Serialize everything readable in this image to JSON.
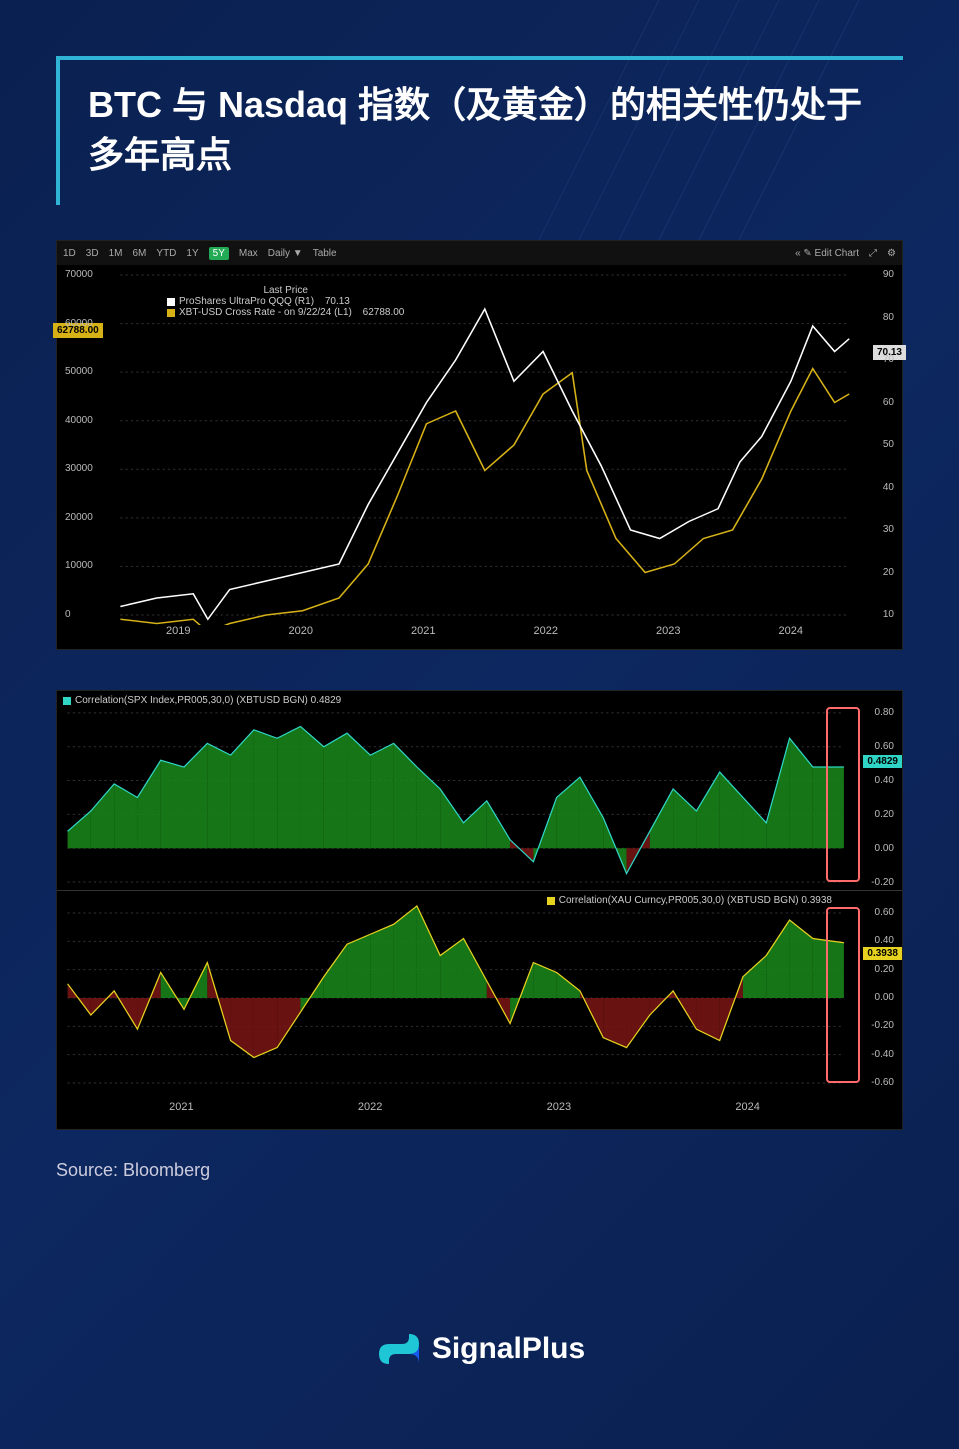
{
  "title": "BTC 与 Nasdaq 指数（及黄金）的相关性仍处于多年高点",
  "source_label": "Source: Bloomberg",
  "brand": "SignalPlus",
  "brand_colors": {
    "teal": "#1fc6d6",
    "blue": "#1a5eff"
  },
  "chart1": {
    "type": "line-dual-axis",
    "toolbar": [
      "1D",
      "3D",
      "1M",
      "6M",
      "YTD",
      "1Y",
      "5Y",
      "Max",
      "Daily ▼",
      "Table"
    ],
    "toolbar_active": "5Y",
    "toolbar_right": [
      "« ✎ Edit Chart",
      "⤢",
      "⚙"
    ],
    "legend_title": "Last Price",
    "series": [
      {
        "name": "ProShares UltraPro QQQ  (R1)",
        "last": "70.13",
        "color": "#ffffff"
      },
      {
        "name": "XBT-USD Cross Rate -  on 9/22/24  (L1)",
        "last": "62788.00",
        "color": "#d6b217"
      }
    ],
    "left_badge": "62788.00",
    "left_badge_color": "#d6b217",
    "right_badge": "70.13",
    "right_badge_color": "#dddddd",
    "background": "#000000",
    "grid_color": "#333333",
    "x_labels": [
      "2019",
      "2020",
      "2021",
      "2022",
      "2023",
      "2024"
    ],
    "left_axis": {
      "min": 0,
      "max": 70000,
      "step": 10000
    },
    "right_axis": {
      "min": 10,
      "max": 90,
      "step": 10
    },
    "line_white": [
      [
        0,
        12
      ],
      [
        5,
        14
      ],
      [
        10,
        15
      ],
      [
        12,
        9
      ],
      [
        15,
        16
      ],
      [
        20,
        18
      ],
      [
        25,
        20
      ],
      [
        30,
        22
      ],
      [
        34,
        36
      ],
      [
        38,
        48
      ],
      [
        42,
        60
      ],
      [
        46,
        70
      ],
      [
        50,
        82
      ],
      [
        54,
        65
      ],
      [
        58,
        72
      ],
      [
        62,
        58
      ],
      [
        66,
        45
      ],
      [
        70,
        30
      ],
      [
        74,
        28
      ],
      [
        78,
        32
      ],
      [
        82,
        35
      ],
      [
        85,
        46
      ],
      [
        88,
        52
      ],
      [
        92,
        65
      ],
      [
        95,
        78
      ],
      [
        98,
        72
      ],
      [
        100,
        75
      ]
    ],
    "line_yellow": [
      [
        0,
        9
      ],
      [
        5,
        8
      ],
      [
        10,
        9
      ],
      [
        12,
        6
      ],
      [
        15,
        8
      ],
      [
        20,
        10
      ],
      [
        25,
        11
      ],
      [
        30,
        14
      ],
      [
        34,
        22
      ],
      [
        38,
        38
      ],
      [
        42,
        55
      ],
      [
        46,
        58
      ],
      [
        50,
        44
      ],
      [
        54,
        50
      ],
      [
        58,
        62
      ],
      [
        62,
        67
      ],
      [
        64,
        44
      ],
      [
        68,
        28
      ],
      [
        72,
        20
      ],
      [
        76,
        22
      ],
      [
        80,
        28
      ],
      [
        84,
        30
      ],
      [
        88,
        42
      ],
      [
        92,
        58
      ],
      [
        95,
        68
      ],
      [
        98,
        60
      ],
      [
        100,
        62
      ]
    ]
  },
  "chart2": {
    "type": "correlation-area",
    "background": "#000000",
    "x_labels": [
      "2021",
      "2022",
      "2023",
      "2024"
    ],
    "highlight": {
      "left_pct": 91,
      "width_pct": 4
    },
    "panel_spx": {
      "legend": "Correlation(SPX Index,PR005,30,0) (XBTUSD BGN) 0.4829",
      "legend_color": "#2fd6c6",
      "badge": "0.4829",
      "badge_color": "#2fd6c6",
      "badge_top_pct": 32,
      "y_axis": {
        "min": -0.2,
        "max": 0.8,
        "step": 0.2
      },
      "positive_fill": "#1a8a1a",
      "negative_fill": "#7a1515",
      "line_color": "#2fd6c6",
      "data": [
        [
          0,
          0.1
        ],
        [
          3,
          0.22
        ],
        [
          6,
          0.38
        ],
        [
          9,
          0.3
        ],
        [
          12,
          0.52
        ],
        [
          15,
          0.48
        ],
        [
          18,
          0.62
        ],
        [
          21,
          0.55
        ],
        [
          24,
          0.7
        ],
        [
          27,
          0.65
        ],
        [
          30,
          0.72
        ],
        [
          33,
          0.6
        ],
        [
          36,
          0.68
        ],
        [
          39,
          0.55
        ],
        [
          42,
          0.62
        ],
        [
          45,
          0.48
        ],
        [
          48,
          0.35
        ],
        [
          51,
          0.15
        ],
        [
          54,
          0.28
        ],
        [
          57,
          0.05
        ],
        [
          60,
          -0.08
        ],
        [
          63,
          0.3
        ],
        [
          66,
          0.42
        ],
        [
          69,
          0.18
        ],
        [
          72,
          -0.15
        ],
        [
          75,
          0.1
        ],
        [
          78,
          0.35
        ],
        [
          81,
          0.22
        ],
        [
          84,
          0.45
        ],
        [
          87,
          0.3
        ],
        [
          90,
          0.15
        ],
        [
          93,
          0.65
        ],
        [
          96,
          0.48
        ],
        [
          100,
          0.48
        ]
      ]
    },
    "panel_xau": {
      "legend": "Correlation(XAU Curncy,PR005,30,0) (XBTUSD BGN) 0.3938",
      "legend_color": "#e6d21f",
      "badge": "0.3938",
      "badge_color": "#e6d21f",
      "badge_top_pct": 28,
      "y_axis": {
        "min": -0.6,
        "max": 0.6,
        "step": 0.2
      },
      "positive_fill": "#1a8a1a",
      "negative_fill": "#7a1515",
      "line_color": "#e6d21f",
      "data": [
        [
          0,
          0.1
        ],
        [
          3,
          -0.12
        ],
        [
          6,
          0.05
        ],
        [
          9,
          -0.22
        ],
        [
          12,
          0.18
        ],
        [
          15,
          -0.08
        ],
        [
          18,
          0.25
        ],
        [
          21,
          -0.3
        ],
        [
          24,
          -0.42
        ],
        [
          27,
          -0.35
        ],
        [
          30,
          -0.1
        ],
        [
          33,
          0.15
        ],
        [
          36,
          0.38
        ],
        [
          39,
          0.45
        ],
        [
          42,
          0.52
        ],
        [
          45,
          0.65
        ],
        [
          48,
          0.3
        ],
        [
          51,
          0.42
        ],
        [
          54,
          0.12
        ],
        [
          57,
          -0.18
        ],
        [
          60,
          0.25
        ],
        [
          63,
          0.18
        ],
        [
          66,
          0.05
        ],
        [
          69,
          -0.28
        ],
        [
          72,
          -0.35
        ],
        [
          75,
          -0.12
        ],
        [
          78,
          0.05
        ],
        [
          81,
          -0.22
        ],
        [
          84,
          -0.3
        ],
        [
          87,
          0.15
        ],
        [
          90,
          0.3
        ],
        [
          93,
          0.55
        ],
        [
          96,
          0.42
        ],
        [
          100,
          0.39
        ]
      ]
    }
  }
}
